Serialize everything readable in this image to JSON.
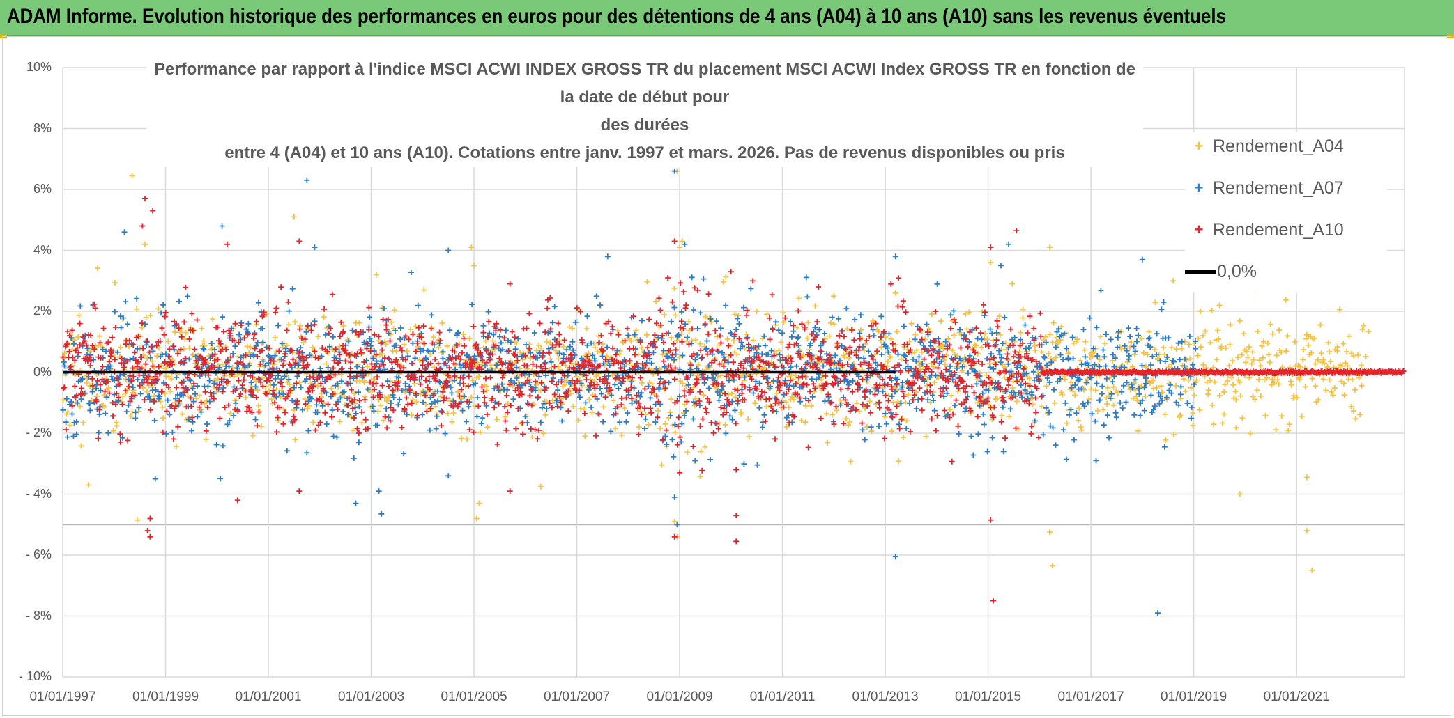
{
  "header": {
    "banner_title": "ADAM Informe. Evolution historique des performances en euros pour des détentions de 4 ans (A04) à 10 ans (A10) sans les revenus éventuels",
    "banner_color": "#79c978"
  },
  "chart_data": {
    "type": "scatter",
    "title_lines": [
      "Performance par rapport à l'indice MSCI ACWI INDEX GROSS TR  du placement MSCI ACWI Index GROSS TR en fonction de la date de début pour",
      "des durées",
      "entre 4 (A04) et 10 ans (A10). Cotations entre janv. 1997 et mars. 2026. Pas de revenus disponibles ou pris"
    ],
    "ylim": [
      -10,
      10
    ],
    "y_ticks": [
      {
        "value": 10,
        "label": "10%"
      },
      {
        "value": 8,
        "label": "8%"
      },
      {
        "value": 6,
        "label": "6%"
      },
      {
        "value": 4,
        "label": "4%"
      },
      {
        "value": 2,
        "label": "2%"
      },
      {
        "value": 0,
        "label": "0%"
      },
      {
        "value": -2,
        "label": "- 2%"
      },
      {
        "value": -4,
        "label": "- 4%"
      },
      {
        "value": -6,
        "label": "- 6%"
      },
      {
        "value": -8,
        "label": "- 8%"
      },
      {
        "value": -10,
        "label": "- 10%"
      }
    ],
    "x_ticks": [
      {
        "year": 1997,
        "label": "01/01/1997"
      },
      {
        "year": 1999,
        "label": "01/01/1999"
      },
      {
        "year": 2001,
        "label": "01/01/2001"
      },
      {
        "year": 2003,
        "label": "01/01/2003"
      },
      {
        "year": 2005,
        "label": "01/01/2005"
      },
      {
        "year": 2007,
        "label": "01/01/2007"
      },
      {
        "year": 2009,
        "label": "01/01/2009"
      },
      {
        "year": 2011,
        "label": "01/01/2011"
      },
      {
        "year": 2013,
        "label": "01/01/2013"
      },
      {
        "year": 2015,
        "label": "01/01/2015"
      },
      {
        "year": 2017,
        "label": "01/01/2017"
      },
      {
        "year": 2019,
        "label": "01/01/2019"
      },
      {
        "year": 2021,
        "label": "01/01/2021"
      }
    ],
    "xlim": [
      1997,
      2023.1
    ],
    "grid": true,
    "legend_position": "right",
    "reference_line": {
      "name": "0,0%",
      "value": 0,
      "color": "#000000"
    },
    "series": [
      {
        "name": "Rendement_A04",
        "color": "#f5c242",
        "marker": "plus",
        "x_end": 2022.4,
        "spread": 1.2,
        "points": [
          [
            1998.35,
            6.45
          ],
          [
            1998.45,
            -4.85
          ],
          [
            1997.5,
            -3.7
          ],
          [
            1998.6,
            4.2
          ],
          [
            2001.5,
            5.1
          ],
          [
            2005.0,
            3.5
          ],
          [
            2004.95,
            4.1
          ],
          [
            2005.05,
            -4.8
          ],
          [
            2005.1,
            -4.3
          ],
          [
            2006.3,
            -3.75
          ],
          [
            2008.95,
            6.6
          ],
          [
            2009.0,
            4.1
          ],
          [
            2008.9,
            -4.9
          ],
          [
            2008.95,
            -5.4
          ],
          [
            2009.05,
            4.3
          ],
          [
            2015.05,
            3.6
          ],
          [
            2016.2,
            4.1
          ],
          [
            2016.2,
            -5.25
          ],
          [
            2016.25,
            -6.35
          ],
          [
            2018.6,
            3.0
          ],
          [
            2019.0,
            3.4
          ],
          [
            2019.9,
            -4.0
          ],
          [
            2020.2,
            2.7
          ],
          [
            2021.2,
            -5.2
          ],
          [
            2021.3,
            -6.5
          ],
          [
            2021.2,
            -3.45
          ],
          [
            2012.0,
            2.5
          ],
          [
            2013.2,
            2.6
          ],
          [
            2010.5,
            2.0
          ],
          [
            2003.1,
            3.2
          ]
        ]
      },
      {
        "name": "Rendement_A07",
        "color": "#2a7dc9",
        "marker": "plus",
        "x_end": 2019.05,
        "spread": 1.2,
        "points": [
          [
            1998.2,
            4.6
          ],
          [
            1998.8,
            -3.5
          ],
          [
            2000.1,
            4.8
          ],
          [
            2001.75,
            6.3
          ],
          [
            2001.9,
            4.1
          ],
          [
            2002.7,
            -4.3
          ],
          [
            2003.15,
            -3.9
          ],
          [
            2003.2,
            -4.65
          ],
          [
            2004.5,
            4.0
          ],
          [
            2004.5,
            -3.4
          ],
          [
            2008.9,
            6.6
          ],
          [
            2008.95,
            7.0
          ],
          [
            2008.9,
            -4.1
          ],
          [
            2008.95,
            -5.0
          ],
          [
            2009.1,
            4.2
          ],
          [
            2013.2,
            3.8
          ],
          [
            2013.2,
            -6.05
          ],
          [
            2015.4,
            4.2
          ],
          [
            2015.3,
            -2.6
          ],
          [
            2017.1,
            -2.9
          ],
          [
            2018.3,
            -7.9
          ],
          [
            2018.0,
            3.7
          ],
          [
            2015.25,
            3.5
          ],
          [
            2007.6,
            3.8
          ]
        ]
      },
      {
        "name": "Rendement_A10",
        "color": "#e3242b",
        "marker": "plus",
        "x_end": 2016.05,
        "spread": 1.15,
        "points": [
          [
            1998.6,
            5.7
          ],
          [
            1998.55,
            4.8
          ],
          [
            1998.75,
            5.3
          ],
          [
            1998.7,
            -5.4
          ],
          [
            1998.7,
            -4.8
          ],
          [
            1998.65,
            -5.2
          ],
          [
            2000.2,
            4.2
          ],
          [
            2000.4,
            -4.2
          ],
          [
            2001.6,
            4.3
          ],
          [
            2001.6,
            -3.9
          ],
          [
            2008.9,
            4.3
          ],
          [
            2008.95,
            7.0
          ],
          [
            2008.9,
            -5.4
          ],
          [
            2009.0,
            -3.3
          ],
          [
            2010.0,
            3.3
          ],
          [
            2010.1,
            -5.55
          ],
          [
            2010.1,
            -4.7
          ],
          [
            2010.1,
            -3.2
          ],
          [
            2015.05,
            4.1
          ],
          [
            2015.05,
            -4.85
          ],
          [
            2015.1,
            -7.5
          ],
          [
            2015.55,
            4.65
          ],
          [
            2005.7,
            2.9
          ],
          [
            2005.7,
            -3.9
          ],
          [
            2011.7,
            2.8
          ]
        ]
      }
    ]
  }
}
